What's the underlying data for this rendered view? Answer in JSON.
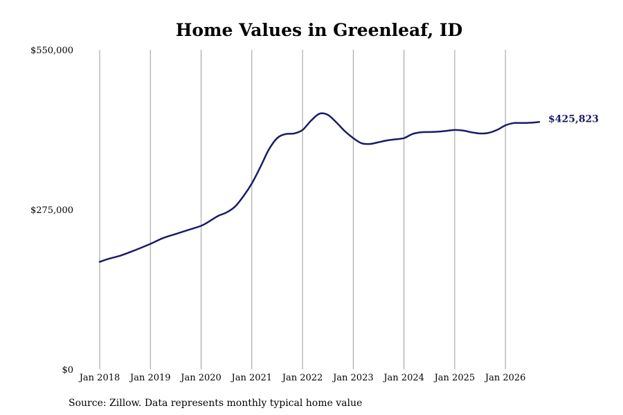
{
  "chart_data": {
    "type": "line",
    "title": "Home Values in Greenleaf, ID",
    "xlabel": "",
    "ylabel": "",
    "source": "Source: Zillow. Data represents monthly typical home value",
    "x_start": "Jan 2018",
    "x_end": "Sep 2026",
    "xlim": [
      2018.0,
      2026.667
    ],
    "ylim": [
      0,
      550000
    ],
    "grid": {
      "vertical": true,
      "horizontal": false
    },
    "y_ticks": [
      {
        "value": 0,
        "label": "$0"
      },
      {
        "value": 275000,
        "label": "$275,000"
      },
      {
        "value": 550000,
        "label": "$550,000"
      }
    ],
    "x_ticks": [
      {
        "value": 2018,
        "label": "Jan 2018"
      },
      {
        "value": 2019,
        "label": "Jan 2019"
      },
      {
        "value": 2020,
        "label": "Jan 2020"
      },
      {
        "value": 2021,
        "label": "Jan 2021"
      },
      {
        "value": 2022,
        "label": "Jan 2022"
      },
      {
        "value": 2023,
        "label": "Jan 2023"
      },
      {
        "value": 2024,
        "label": "Jan 2024"
      },
      {
        "value": 2025,
        "label": "Jan 2025"
      },
      {
        "value": 2026,
        "label": "Jan 2026"
      }
    ],
    "end_label": "$425,823",
    "colors": {
      "line": "#1a1a66",
      "grid": "#999999"
    },
    "series": [
      {
        "points": [
          [
            "Jan 2018",
            185000
          ],
          [
            "Mar 2018",
            190000
          ],
          [
            "Jun 2018",
            196000
          ],
          [
            "Sep 2018",
            204000
          ],
          [
            "Jan 2019",
            216000
          ],
          [
            "Apr 2019",
            226000
          ],
          [
            "Jul 2019",
            233000
          ],
          [
            "Oct 2019",
            240000
          ],
          [
            "Jan 2020",
            247000
          ],
          [
            "Mar 2020",
            255000
          ],
          [
            "May 2020",
            264000
          ],
          [
            "Jul 2020",
            270000
          ],
          [
            "Sep 2020",
            280000
          ],
          [
            "Nov 2020",
            298000
          ],
          [
            "Jan 2021",
            320000
          ],
          [
            "Mar 2021",
            348000
          ],
          [
            "May 2021",
            378000
          ],
          [
            "Jul 2021",
            398000
          ],
          [
            "Sep 2021",
            405000
          ],
          [
            "Nov 2021",
            406000
          ],
          [
            "Jan 2022",
            412000
          ],
          [
            "Mar 2022",
            428000
          ],
          [
            "May 2022",
            440000
          ],
          [
            "Jul 2022",
            438000
          ],
          [
            "Sep 2022",
            425000
          ],
          [
            "Nov 2022",
            410000
          ],
          [
            "Jan 2023",
            398000
          ],
          [
            "Mar 2023",
            389000
          ],
          [
            "May 2023",
            388000
          ],
          [
            "Jul 2023",
            391000
          ],
          [
            "Sep 2023",
            394000
          ],
          [
            "Nov 2023",
            396000
          ],
          [
            "Jan 2024",
            398000
          ],
          [
            "Mar 2024",
            405000
          ],
          [
            "May 2024",
            408000
          ],
          [
            "Jul 2024",
            408500
          ],
          [
            "Sep 2024",
            409000
          ],
          [
            "Nov 2024",
            410500
          ],
          [
            "Jan 2025",
            412000
          ],
          [
            "Mar 2025",
            411000
          ],
          [
            "May 2025",
            408000
          ],
          [
            "Jul 2025",
            406000
          ],
          [
            "Sep 2025",
            407000
          ],
          [
            "Nov 2025",
            412000
          ],
          [
            "Jan 2026",
            420000
          ],
          [
            "Mar 2026",
            424000
          ],
          [
            "May 2026",
            424000
          ],
          [
            "Jul 2026",
            424500
          ],
          [
            "Sep 2026",
            425823
          ]
        ]
      }
    ]
  }
}
